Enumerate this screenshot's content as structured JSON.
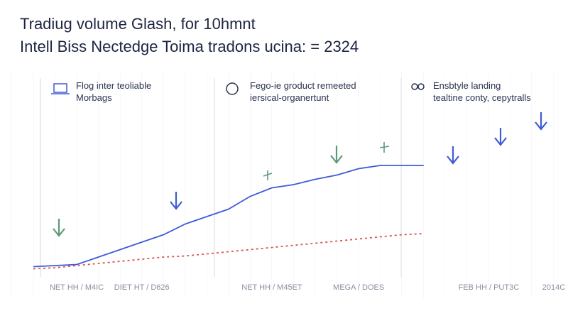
{
  "chart_data": {
    "type": "line",
    "title": "Tradiug volume Glash, for 10hmnt",
    "subtitle": "Intell Biss Nectedge Toima tradons ucina: = 2324",
    "annotations": [
      "Flog inter teoliable",
      "Morbags",
      "Fego-ie groduct remeeted",
      "iersical-organertunt",
      "Ensbtyle landing",
      "tealtine conty, cepytralls"
    ],
    "categories": [
      null,
      null,
      "NET HH / M4IC",
      null,
      null,
      "DIET HT / D626",
      null,
      null,
      null,
      null,
      null,
      "NET HH / M45ET",
      null,
      null,
      null,
      "MEGA / DOES",
      null,
      null,
      null,
      null,
      null,
      "FEB HH / PUT3C",
      null,
      null,
      "2014C"
    ],
    "ylim": [
      0,
      100
    ],
    "series": [
      {
        "color": "#3f5bd6",
        "dash": false,
        "values": [
          3,
          4,
          5,
          12,
          19,
          26,
          33,
          43,
          50,
          57,
          69,
          77,
          80,
          85,
          89,
          95,
          98,
          98,
          98,
          null,
          null,
          null,
          null,
          null,
          null
        ]
      },
      {
        "color": "#d9534f",
        "dash": true,
        "values": [
          1,
          2,
          4,
          6,
          8,
          10,
          12,
          13,
          15,
          17,
          19,
          21,
          23,
          25,
          27,
          29,
          31,
          33,
          34,
          null,
          null,
          null,
          null,
          null,
          null
        ]
      }
    ]
  }
}
